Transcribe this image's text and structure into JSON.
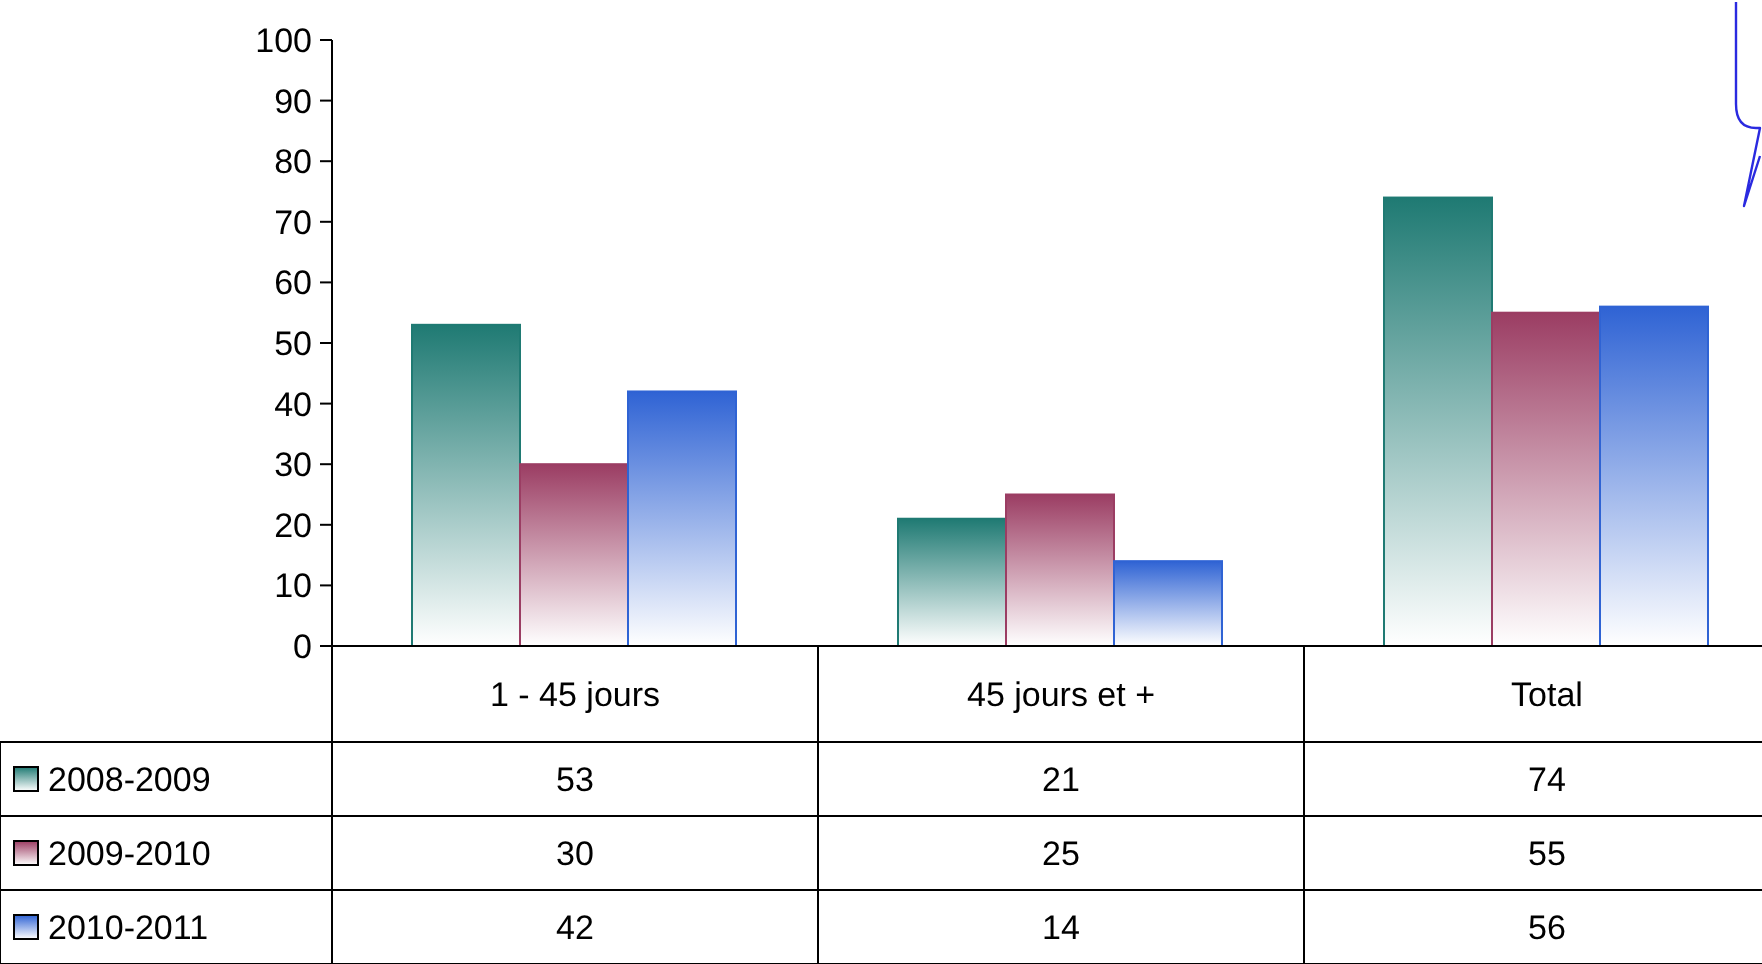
{
  "chart_data": {
    "type": "bar",
    "categories": [
      "1 - 45 jours",
      "45 jours et +",
      "Total"
    ],
    "series": [
      {
        "name": "2008-2009",
        "color": "#1f7a73",
        "values": [
          53,
          21,
          74
        ]
      },
      {
        "name": "2009-2010",
        "color": "#9b3d63",
        "values": [
          30,
          25,
          55
        ]
      },
      {
        "name": "2010-2011",
        "color": "#2f63d4",
        "values": [
          42,
          14,
          56
        ]
      }
    ],
    "ylim": [
      0,
      100
    ],
    "yticks": [
      0,
      10,
      20,
      30,
      40,
      50,
      60,
      70,
      80,
      90,
      100
    ],
    "data_labels": true,
    "legend": "bottom",
    "grid": false
  }
}
